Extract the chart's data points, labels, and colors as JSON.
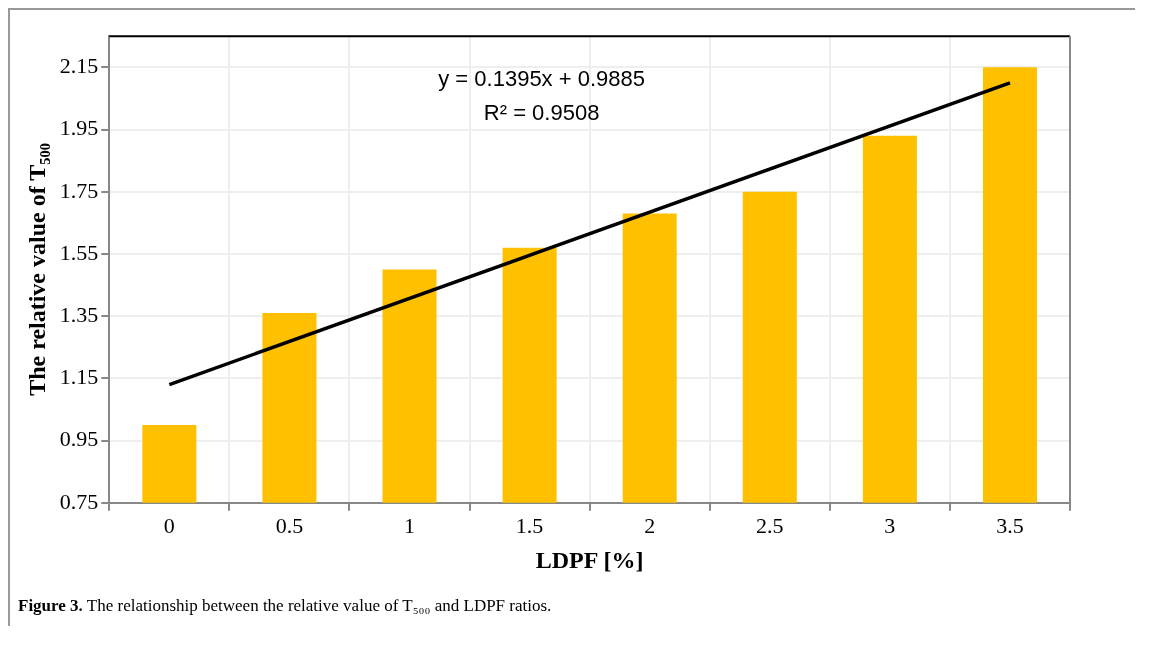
{
  "chart_data": {
    "type": "bar",
    "xlabel": "LDPF [%]",
    "ylabel": "The relative value of T₅₀₀",
    "categories": [
      "0",
      "0.5",
      "1",
      "1.5",
      "2",
      "2.5",
      "3",
      "3.5"
    ],
    "series": [
      {
        "color": "#ffc000",
        "values": [
          1.0,
          1.36,
          1.5,
          1.57,
          1.68,
          1.75,
          1.93,
          2.15
        ]
      },
      {
        "type": "line",
        "color": "#000000",
        "x": [
          "0",
          "3.5"
        ],
        "values": [
          1.13,
          2.1
        ]
      }
    ],
    "ylim": [
      0.75,
      2.25
    ],
    "yticks": [
      0.75,
      0.95,
      1.15,
      1.35,
      1.55,
      1.75,
      1.95,
      2.15
    ],
    "grid": true,
    "legend": false,
    "marker": "none",
    "line_style": "solid",
    "annotations": [
      "y = 0.1395x + 0.9885",
      "R² = 0.9508",
      "Figure 3. The relationship between the relative value of T₅₀₀ and LDPF ratios."
    ]
  }
}
